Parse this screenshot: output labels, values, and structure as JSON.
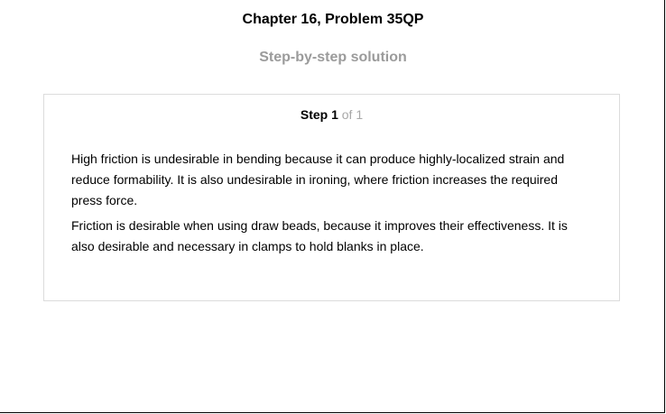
{
  "header": {
    "chapter_title": "Chapter 16, Problem 35QP",
    "solution_heading": "Step-by-step solution"
  },
  "step": {
    "label": "Step 1",
    "of_text": "of 1",
    "paragraphs": [
      "High friction is undesirable in bending because it can produce highly-localized strain and reduce formability. It is also undesirable in ironing, where friction increases the required press force.",
      "Friction is desirable when using draw beads, because it improves their effectiveness. It is also desirable and necessary in clamps to hold blanks in place."
    ]
  }
}
